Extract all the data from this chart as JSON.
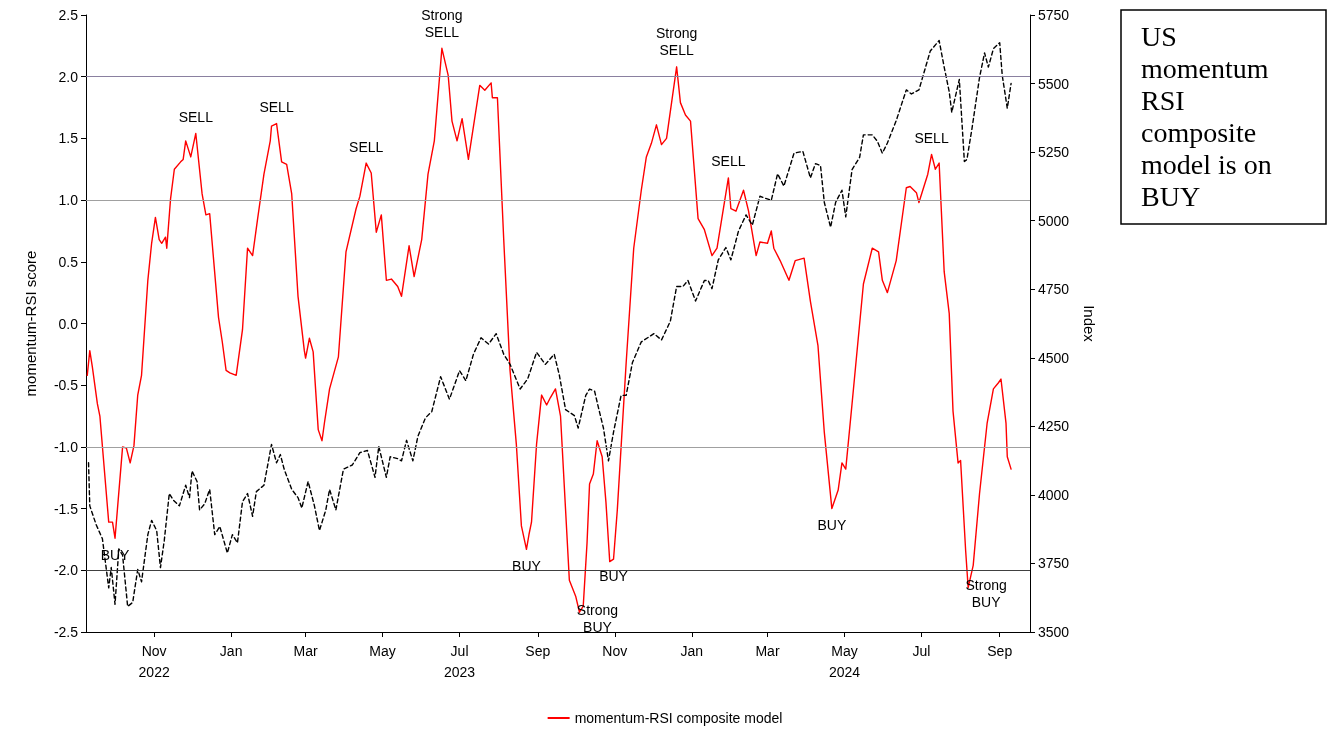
{
  "chart_data": {
    "type": "line",
    "title": "US momentum RSI composite model is on BUY",
    "ylabel": "momentum-RSI score",
    "y2label": "Index",
    "legend": "bottom",
    "marker": "none",
    "grid": false,
    "xlim": [
      "2022-09-08",
      "2024-09-25"
    ],
    "xticks": [
      {
        "value": "2022-11-01",
        "label": "Nov\n2022"
      },
      {
        "value": "2023-01-01",
        "label": "Jan"
      },
      {
        "value": "2023-03-01",
        "label": "Mar"
      },
      {
        "value": "2023-05-01",
        "label": "May"
      },
      {
        "value": "2023-07-01",
        "label": "Jul\n2023"
      },
      {
        "value": "2023-09-01",
        "label": "Sep"
      },
      {
        "value": "2023-11-01",
        "label": "Nov"
      },
      {
        "value": "2024-01-01",
        "label": "Jan"
      },
      {
        "value": "2024-03-01",
        "label": "Mar"
      },
      {
        "value": "2024-05-01",
        "label": "May\n2024"
      },
      {
        "value": "2024-07-01",
        "label": "Jul"
      },
      {
        "value": "2024-09-01",
        "label": "Sep"
      }
    ],
    "ylim": [
      -2.5,
      2.5
    ],
    "yticks": [
      -2.5,
      {
        "value": -2,
        "label": "-2.0"
      },
      -1.5,
      {
        "value": -1,
        "label": "-1.0"
      },
      -0.5,
      {
        "value": 0,
        "label": "0.0"
      },
      0.5,
      {
        "value": 1,
        "label": "1.0"
      },
      1.5,
      {
        "value": 2,
        "label": "2.0"
      },
      2.5
    ],
    "y2lim": [
      3500,
      5750
    ],
    "y2ticks": [
      3500,
      3750,
      4000,
      4250,
      4500,
      4750,
      5000,
      5250,
      5500,
      5750
    ],
    "ref_lines": [
      {
        "axis": "y",
        "value": 2,
        "color": "#8a80a0"
      },
      {
        "axis": "y",
        "value": 1,
        "color": "#a0a0a0"
      },
      {
        "axis": "y",
        "value": -1,
        "color": "#a0a0a0"
      },
      {
        "axis": "y",
        "value": -2,
        "color": "#404040"
      }
    ],
    "series": [
      {
        "name": "momentum-RSI composite model",
        "color": "#ff0000",
        "line_style": "solid",
        "x": [
          "2022-09-09",
          "2022-09-11",
          "2022-09-13",
          "2022-09-17",
          "2022-09-19",
          "2022-09-26",
          "2022-09-29",
          "2022-10-01",
          "2022-10-07",
          "2022-10-10",
          "2022-10-13",
          "2022-10-16",
          "2022-10-19",
          "2022-10-22",
          "2022-10-27",
          "2022-10-30",
          "2022-11-02",
          "2022-11-05",
          "2022-11-07",
          "2022-11-10",
          "2022-11-11",
          "2022-11-14",
          "2022-11-17",
          "2022-11-22",
          "2022-11-24",
          "2022-11-26",
          "2022-11-30",
          "2022-12-04",
          "2022-12-09",
          "2022-12-12",
          "2022-12-15",
          "2022-12-22",
          "2022-12-25",
          "2022-12-28",
          "2022-12-31",
          "2023-01-05",
          "2023-01-10",
          "2023-01-14",
          "2023-01-18",
          "2023-01-22",
          "2023-01-27",
          "2023-02-01",
          "2023-02-02",
          "2023-02-06",
          "2023-02-10",
          "2023-02-14",
          "2023-02-18",
          "2023-02-23",
          "2023-02-28",
          "2023-03-01",
          "2023-03-04",
          "2023-03-07",
          "2023-03-11",
          "2023-03-14",
          "2023-03-16",
          "2023-03-20",
          "2023-03-27",
          "2023-04-02",
          "2023-04-10",
          "2023-04-13",
          "2023-04-18",
          "2023-04-22",
          "2023-04-26",
          "2023-04-30",
          "2023-05-04",
          "2023-05-08",
          "2023-05-13",
          "2023-05-16",
          "2023-05-22",
          "2023-05-26",
          "2023-05-30",
          "2023-06-01",
          "2023-06-06",
          "2023-06-11",
          "2023-06-17",
          "2023-06-22",
          "2023-06-25",
          "2023-06-29",
          "2023-07-03",
          "2023-07-08",
          "2023-07-17",
          "2023-07-21",
          "2023-07-26",
          "2023-07-27",
          "2023-07-31",
          "2023-08-05",
          "2023-08-10",
          "2023-08-15",
          "2023-08-19",
          "2023-08-23",
          "2023-08-25",
          "2023-08-27",
          "2023-08-31",
          "2023-09-04",
          "2023-09-08",
          "2023-09-11",
          "2023-09-15",
          "2023-09-19",
          "2023-09-26",
          "2023-10-01",
          "2023-10-04",
          "2023-10-07",
          "2023-10-10",
          "2023-10-12",
          "2023-10-15",
          "2023-10-18",
          "2023-10-22",
          "2023-10-25",
          "2023-10-28",
          "2023-10-31",
          "2023-11-03",
          "2023-11-10",
          "2023-11-16",
          "2023-11-22",
          "2023-11-26",
          "2023-11-30",
          "2023-12-04",
          "2023-12-08",
          "2023-12-12",
          "2023-12-20",
          "2023-12-23",
          "2023-12-27",
          "2023-12-31",
          "2024-01-06",
          "2024-01-11",
          "2024-01-17",
          "2024-01-21",
          "2024-01-30",
          "2024-02-01",
          "2024-02-05",
          "2024-02-11",
          "2024-02-15",
          "2024-02-21",
          "2024-02-24",
          "2024-03-01",
          "2024-03-04",
          "2024-03-06",
          "2024-03-11",
          "2024-03-18",
          "2024-03-23",
          "2024-03-30",
          "2024-04-04",
          "2024-04-10",
          "2024-04-15",
          "2024-04-21",
          "2024-04-26",
          "2024-04-29",
          "2024-05-02",
          "2024-05-07",
          "2024-05-16",
          "2024-05-23",
          "2024-05-28",
          "2024-05-31",
          "2024-06-04",
          "2024-06-11",
          "2024-06-19",
          "2024-06-22",
          "2024-06-27",
          "2024-06-29",
          "2024-07-06",
          "2024-07-09",
          "2024-07-12",
          "2024-07-15",
          "2024-07-19",
          "2024-07-23",
          "2024-07-26",
          "2024-07-30",
          "2024-08-01",
          "2024-08-05",
          "2024-08-07",
          "2024-08-11",
          "2024-08-16",
          "2024-08-22",
          "2024-08-27",
          "2024-08-31",
          "2024-09-02",
          "2024-09-06",
          "2024-09-07",
          "2024-09-10"
        ],
        "values": [
          -0.42,
          -0.22,
          -0.35,
          -0.65,
          -0.75,
          -1.61,
          -1.61,
          -1.74,
          -1.0,
          -1.01,
          -1.13,
          -0.99,
          -0.58,
          -0.42,
          0.35,
          0.65,
          0.86,
          0.68,
          0.65,
          0.7,
          0.61,
          1.01,
          1.25,
          1.31,
          1.33,
          1.48,
          1.35,
          1.54,
          1.05,
          0.88,
          0.89,
          0.05,
          -0.15,
          -0.38,
          -0.4,
          -0.42,
          -0.05,
          0.61,
          0.55,
          0.85,
          1.21,
          1.48,
          1.6,
          1.62,
          1.31,
          1.29,
          1.05,
          0.22,
          -0.22,
          -0.28,
          -0.12,
          -0.23,
          -0.86,
          -0.95,
          -0.8,
          -0.53,
          -0.27,
          0.58,
          0.93,
          1.03,
          1.3,
          1.22,
          0.74,
          0.88,
          0.35,
          0.36,
          0.3,
          0.22,
          0.63,
          0.38,
          0.58,
          0.68,
          1.21,
          1.48,
          2.23,
          2.01,
          1.64,
          1.48,
          1.66,
          1.33,
          1.93,
          1.89,
          1.95,
          1.83,
          1.83,
          0.68,
          -0.38,
          -0.98,
          -1.64,
          -1.83,
          -1.71,
          -1.61,
          -0.98,
          -0.58,
          -0.66,
          -0.6,
          -0.53,
          -0.75,
          -2.08,
          -2.21,
          -2.34,
          -2.29,
          -1.78,
          -1.3,
          -1.22,
          -0.95,
          -1.08,
          -1.45,
          -1.93,
          -1.91,
          -1.51,
          -0.32,
          0.61,
          1.08,
          1.35,
          1.46,
          1.61,
          1.45,
          1.5,
          2.08,
          1.79,
          1.69,
          1.64,
          0.85,
          0.76,
          0.55,
          0.61,
          1.18,
          0.93,
          0.91,
          1.08,
          0.91,
          0.55,
          0.66,
          0.65,
          0.75,
          0.61,
          0.51,
          0.35,
          0.51,
          0.53,
          0.18,
          -0.18,
          -0.88,
          -1.5,
          -1.35,
          -1.13,
          -1.18,
          -0.65,
          0.32,
          0.61,
          0.58,
          0.35,
          0.25,
          0.51,
          1.1,
          1.11,
          1.06,
          0.98,
          1.21,
          1.37,
          1.25,
          1.3,
          0.42,
          0.08,
          -0.71,
          -1.13,
          -1.11,
          -1.84,
          -2.14,
          -1.96,
          -1.38,
          -0.81,
          -0.53,
          -0.48,
          -0.45,
          -0.81,
          -1.08,
          -1.18
        ]
      },
      {
        "color": "#000000",
        "line_style": "dashed",
        "axis": "y2",
        "x": [
          "2022-09-10",
          "2022-09-11",
          "2022-09-16",
          "2022-09-21",
          "2022-09-26",
          "2022-09-28",
          "2022-10-01",
          "2022-10-04",
          "2022-10-07",
          "2022-10-11",
          "2022-10-15",
          "2022-10-19",
          "2022-10-22",
          "2022-10-27",
          "2022-10-30",
          "2022-11-03",
          "2022-11-06",
          "2022-11-09",
          "2022-11-13",
          "2022-11-16",
          "2022-11-21",
          "2022-11-26",
          "2022-11-29",
          "2022-12-01",
          "2022-12-05",
          "2022-12-07",
          "2022-12-11",
          "2022-12-15",
          "2022-12-19",
          "2022-12-23",
          "2022-12-29",
          "2023-01-02",
          "2023-01-06",
          "2023-01-10",
          "2023-01-14",
          "2023-01-18",
          "2023-01-21",
          "2023-01-27",
          "2023-01-30",
          "2023-02-02",
          "2023-02-06",
          "2023-02-09",
          "2023-02-12",
          "2023-02-18",
          "2023-02-23",
          "2023-02-26",
          "2023-03-03",
          "2023-03-08",
          "2023-03-12",
          "2023-03-17",
          "2023-03-20",
          "2023-03-25",
          "2023-03-31",
          "2023-04-07",
          "2023-04-13",
          "2023-04-19",
          "2023-04-25",
          "2023-04-28",
          "2023-05-04",
          "2023-05-07",
          "2023-05-13",
          "2023-05-16",
          "2023-05-20",
          "2023-05-25",
          "2023-05-29",
          "2023-06-04",
          "2023-06-09",
          "2023-06-16",
          "2023-06-23",
          "2023-07-01",
          "2023-07-06",
          "2023-07-12",
          "2023-07-18",
          "2023-07-24",
          "2023-07-30",
          "2023-08-05",
          "2023-08-10",
          "2023-08-18",
          "2023-08-24",
          "2023-08-31",
          "2023-09-07",
          "2023-09-14",
          "2023-09-18",
          "2023-09-23",
          "2023-09-30",
          "2023-10-03",
          "2023-10-09",
          "2023-10-12",
          "2023-10-16",
          "2023-10-19",
          "2023-10-23",
          "2023-10-27",
          "2023-10-31",
          "2023-11-06",
          "2023-11-10",
          "2023-11-15",
          "2023-11-22",
          "2023-12-02",
          "2023-12-08",
          "2023-12-15",
          "2023-12-20",
          "2023-12-25",
          "2023-12-29",
          "2024-01-04",
          "2024-01-11",
          "2024-01-14",
          "2024-01-17",
          "2024-01-22",
          "2024-01-28",
          "2024-02-01",
          "2024-02-07",
          "2024-02-13",
          "2024-02-18",
          "2024-02-24",
          "2024-03-04",
          "2024-03-09",
          "2024-03-14",
          "2024-03-22",
          "2024-03-29",
          "2024-04-04",
          "2024-04-08",
          "2024-04-12",
          "2024-04-15",
          "2024-04-20",
          "2024-04-24",
          "2024-04-29",
          "2024-05-02",
          "2024-05-07",
          "2024-05-13",
          "2024-05-16",
          "2024-05-23",
          "2024-05-27",
          "2024-05-31",
          "2024-06-04",
          "2024-06-11",
          "2024-06-19",
          "2024-06-23",
          "2024-06-29",
          "2024-07-08",
          "2024-07-15",
          "2024-07-19",
          "2024-07-23",
          "2024-07-25",
          "2024-07-31",
          "2024-08-04",
          "2024-08-06",
          "2024-08-10",
          "2024-08-16",
          "2024-08-20",
          "2024-08-23",
          "2024-08-27",
          "2024-09-01",
          "2024-09-03",
          "2024-09-07",
          "2024-09-10"
        ],
        "values": [
          4117,
          3960,
          3892,
          3840,
          3661,
          3735,
          3601,
          3803,
          3780,
          3593,
          3608,
          3728,
          3683,
          3855,
          3907,
          3870,
          3735,
          3833,
          4005,
          3982,
          3960,
          4035,
          3990,
          4087,
          4049,
          3945,
          3967,
          4020,
          3855,
          3885,
          3788,
          3855,
          3825,
          3975,
          4005,
          3922,
          4012,
          4035,
          4109,
          4184,
          4117,
          4147,
          4094,
          4020,
          3990,
          3952,
          4049,
          3960,
          3870,
          3945,
          4020,
          3945,
          4094,
          4109,
          4154,
          4162,
          4064,
          4177,
          4064,
          4139,
          4132,
          4124,
          4199,
          4124,
          4214,
          4281,
          4304,
          4431,
          4349,
          4453,
          4416,
          4513,
          4573,
          4550,
          4588,
          4513,
          4476,
          4386,
          4423,
          4520,
          4476,
          4513,
          4438,
          4311,
          4289,
          4244,
          4363,
          4386,
          4378,
          4319,
          4244,
          4124,
          4229,
          4363,
          4363,
          4483,
          4558,
          4588,
          4565,
          4633,
          4760,
          4760,
          4782,
          4707,
          4782,
          4782,
          4752,
          4857,
          4902,
          4857,
          4962,
          5021,
          4984,
          5089,
          5074,
          5171,
          5126,
          5246,
          5253,
          5156,
          5208,
          5201,
          5067,
          4976,
          5067,
          5111,
          5014,
          5186,
          5231,
          5313,
          5313,
          5290,
          5246,
          5283,
          5365,
          5477,
          5462,
          5477,
          5619,
          5657,
          5560,
          5470,
          5395,
          5515,
          5216,
          5223,
          5335,
          5522,
          5612,
          5560,
          5627,
          5649,
          5530,
          5410,
          5500
        ]
      }
    ],
    "annotations": [
      {
        "text": "BUY",
        "x": "2022-10-01",
        "y": -1.74
      },
      {
        "text": "SELL",
        "x": "2022-12-04",
        "y": 1.54
      },
      {
        "text": "SELL",
        "x": "2023-02-06",
        "y": 1.62
      },
      {
        "text": "SELL",
        "x": "2023-04-18",
        "y": 1.3
      },
      {
        "text": "Strong\nSELL",
        "x": "2023-06-17",
        "y": 2.23
      },
      {
        "text": "BUY",
        "x": "2023-08-23",
        "y": -1.83
      },
      {
        "text": "Strong\nBUY",
        "x": "2023-10-04",
        "y": -2.34
      },
      {
        "text": "BUY",
        "x": "2023-10-31",
        "y": -1.91
      },
      {
        "text": "Strong\nSELL",
        "x": "2023-12-20",
        "y": 2.08
      },
      {
        "text": "SELL",
        "x": "2024-01-30",
        "y": 1.18
      },
      {
        "text": "BUY",
        "x": "2024-04-21",
        "y": -1.5
      },
      {
        "text": "SELL",
        "x": "2024-07-09",
        "y": 1.37
      },
      {
        "text": "Strong\nBUY",
        "x": "2024-08-07",
        "y": -2.14
      }
    ]
  }
}
